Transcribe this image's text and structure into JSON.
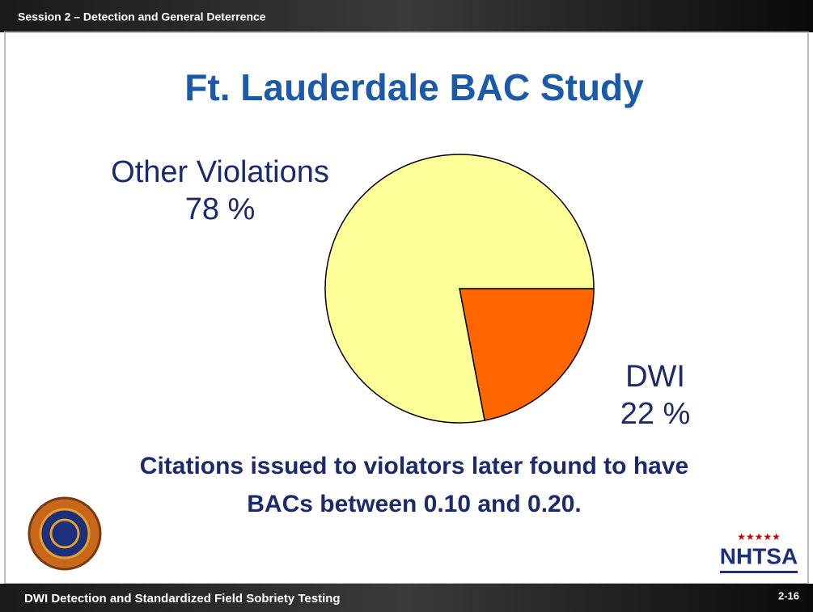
{
  "header": {
    "session": "Session 2 – Detection and General Deterrence"
  },
  "chart_data": {
    "type": "pie",
    "title": "Ft. Lauderdale BAC Study",
    "categories": [
      "DWI",
      "Other Violations"
    ],
    "values": [
      22,
      78
    ],
    "value_labels": [
      "22 %",
      "78 %"
    ],
    "colors": [
      "#ff6600",
      "#ffff99"
    ]
  },
  "caption": [
    "Citations issued to violators later found to have",
    "BACs between 0.10 and 0.20."
  ],
  "logo": {
    "text": "NHTSA"
  },
  "footer": {
    "course": "DWI Detection and Standardized Field Sobriety Testing",
    "slide": "2-16"
  }
}
